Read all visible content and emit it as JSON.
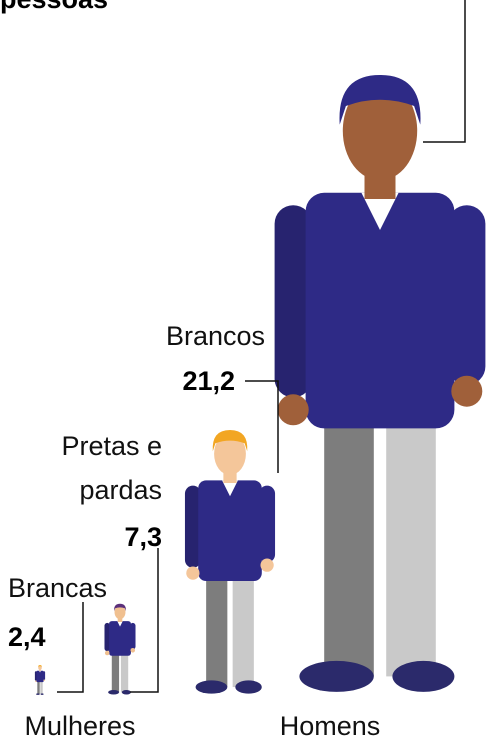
{
  "chart_data": {
    "type": "pictogram",
    "annotation": "pessoas",
    "categories": [
      "Brancas",
      "Pretas e pardas",
      "Brancos",
      null
    ],
    "values": [
      2.4,
      7.3,
      21.2,
      49.6
    ],
    "value_labels": [
      "2,4",
      "7,3",
      "21,2",
      null
    ],
    "groups": [
      "Mulheres",
      "Homens"
    ],
    "color": "#2e2a86"
  }
}
